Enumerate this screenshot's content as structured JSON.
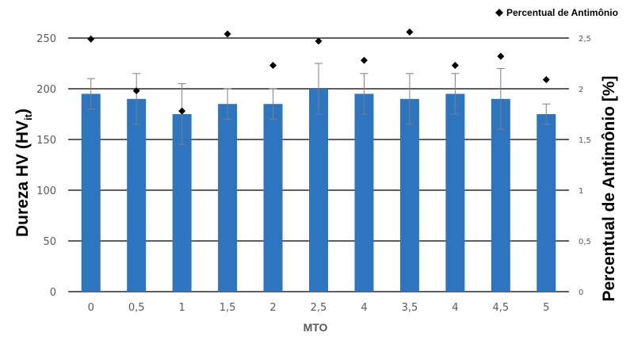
{
  "chart_data": {
    "type": "bar",
    "xlabel": "MTO",
    "ylabel": "Dureza HV (HVit)",
    "ylabel_main": "Dureza HV (HV",
    "ylabel_sub": "it",
    "ylabel_close": ")",
    "y2label": "Percentual de Antimônio [%]",
    "ylim": [
      0,
      250
    ],
    "y2lim": [
      0,
      2.5
    ],
    "yticks": [
      "0",
      "50",
      "100",
      "150",
      "200",
      "250"
    ],
    "y2ticks": [
      "0",
      "0,5",
      "1",
      "1,5",
      "2",
      "2,5"
    ],
    "categories": [
      "0",
      "0,5",
      "1",
      "1,5",
      "2",
      "2,5",
      "4",
      "3,5",
      "4",
      "4,5",
      "5"
    ],
    "series": [
      {
        "values": [
          195,
          190,
          175,
          185,
          185,
          200,
          195,
          190,
          195,
          190,
          175
        ],
        "error": [
          15,
          25,
          30,
          15,
          15,
          25,
          20,
          25,
          20,
          30,
          10
        ],
        "color": "#2E75C0"
      },
      {
        "name": "Percentual de Antimônio",
        "axis": "secondary",
        "marker": "diamond",
        "values": [
          2.49,
          1.98,
          1.78,
          2.54,
          2.23,
          2.47,
          2.28,
          2.56,
          2.23,
          2.32,
          2.09
        ],
        "color": "#000000"
      }
    ],
    "grid": true,
    "legend": "top-right"
  }
}
